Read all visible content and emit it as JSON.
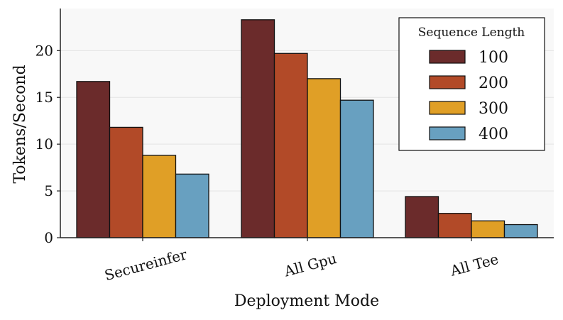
{
  "chart_data": {
    "type": "bar",
    "title": "",
    "xlabel": "Deployment Mode",
    "ylabel": "Tokens/Second",
    "categories": [
      "Secureinfer",
      "All Gpu",
      "All Tee"
    ],
    "series": [
      {
        "name": "100",
        "color": "#6b2b2b",
        "values": [
          16.7,
          23.3,
          4.4
        ]
      },
      {
        "name": "200",
        "color": "#b24a28",
        "values": [
          11.8,
          19.7,
          2.6
        ]
      },
      {
        "name": "300",
        "color": "#e09f26",
        "values": [
          8.8,
          17.0,
          1.8
        ]
      },
      {
        "name": "400",
        "color": "#68a0c0",
        "values": [
          6.8,
          14.7,
          1.4
        ]
      }
    ],
    "ylim": [
      0,
      24.5
    ],
    "yticks": [
      0,
      5,
      10,
      15,
      20
    ],
    "grid": "y",
    "legend": {
      "title": "Sequence Length",
      "placement": "top-right"
    },
    "colors": {
      "plot_background": "#f8f8f8",
      "grid": "#e4e4e4",
      "axis": "#222222",
      "bar_edge": "#111111"
    }
  }
}
